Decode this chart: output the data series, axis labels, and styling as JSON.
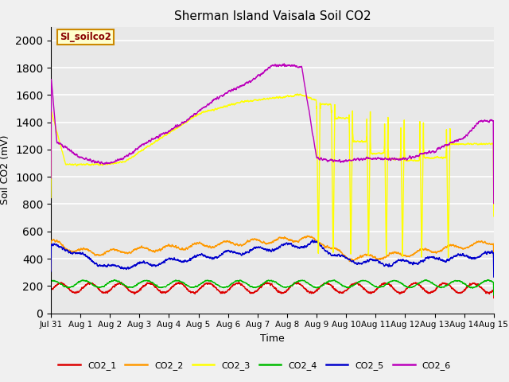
{
  "title": "Sherman Island Vaisala Soil CO2",
  "ylabel": "Soil CO2 (mV)",
  "xlabel": "Time",
  "annotation_text": "SI_soilco2",
  "annotation_bg": "#ffffcc",
  "annotation_border": "#cc8800",
  "annotation_text_color": "#880000",
  "ylim": [
    0,
    2100
  ],
  "yticks": [
    0,
    200,
    400,
    600,
    800,
    1000,
    1200,
    1400,
    1600,
    1800,
    2000
  ],
  "fig_bg": "#f0f0f0",
  "plot_bg": "#e8e8e8",
  "line_colors": {
    "CO2_1": "#dd0000",
    "CO2_2": "#ff9900",
    "CO2_3": "#ffff00",
    "CO2_4": "#00bb00",
    "CO2_5": "#0000cc",
    "CO2_6": "#bb00bb"
  },
  "xtick_labels": [
    "Jul 31",
    "Aug 1",
    "Aug 2",
    "Aug 3",
    "Aug 4",
    "Aug 5",
    "Aug 6",
    "Aug 7",
    "Aug 8",
    "Aug 9",
    "Aug 10",
    "Aug 11",
    "Aug 12",
    "Aug 13",
    "Aug 14",
    "Aug 15"
  ]
}
